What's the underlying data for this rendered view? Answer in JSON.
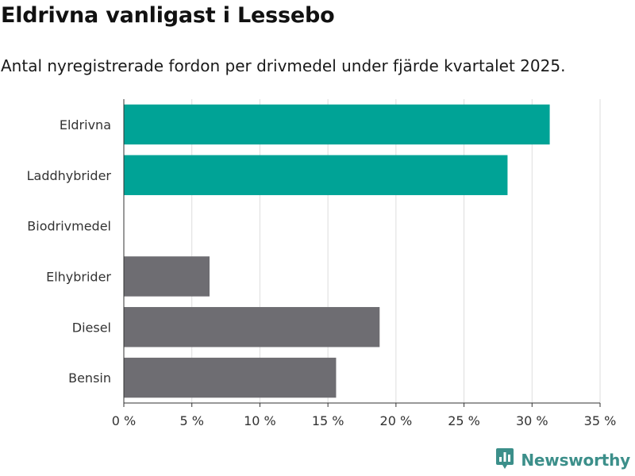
{
  "header": {
    "title": "Eldrivna vanligast i Lessebo",
    "subtitle": "Antal nyregistrerade fordon per drivmedel under fjärde kvartalet 2025."
  },
  "brand": {
    "name": "Newsworthy",
    "color": "#3c8f8a"
  },
  "chart_data": {
    "type": "bar",
    "orientation": "horizontal",
    "title": "Eldrivna vanligast i Lessebo",
    "subtitle": "Antal nyregistrerade fordon per drivmedel under fjärde kvartalet 2025.",
    "xlabel": "",
    "ylabel": "",
    "categories": [
      "Eldrivna",
      "Laddhybrider",
      "Biodrivmedel",
      "Elhybrider",
      "Diesel",
      "Bensin"
    ],
    "values": [
      31.3,
      28.2,
      0,
      6.3,
      18.8,
      15.6
    ],
    "colors": [
      "#00a396",
      "#00a396",
      "#6e6d72",
      "#6e6d72",
      "#6e6d72",
      "#6e6d72"
    ],
    "xlim": [
      0,
      35
    ],
    "ticks": [
      0,
      5,
      10,
      15,
      20,
      25,
      30,
      35
    ],
    "tick_labels": [
      "0 %",
      "5 %",
      "10 %",
      "15 %",
      "20 %",
      "25 %",
      "30 %",
      "35 %"
    ],
    "grid": true
  }
}
